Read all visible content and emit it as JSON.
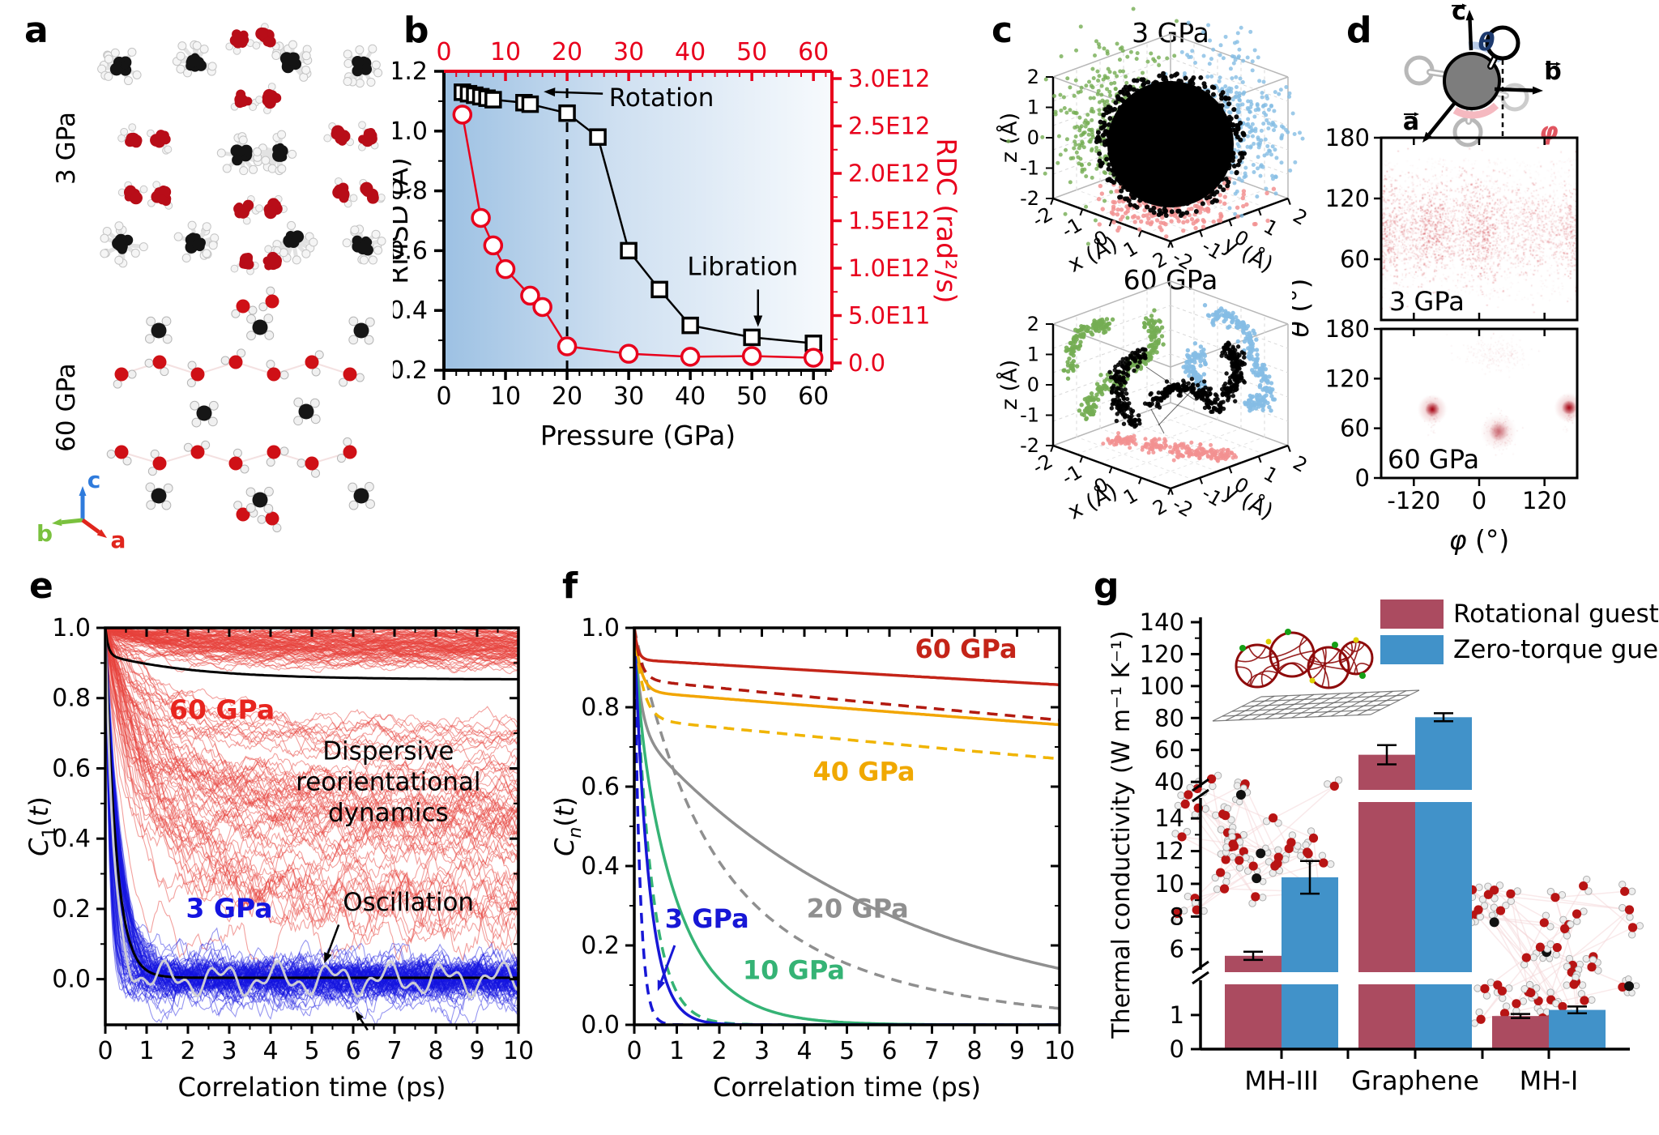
{
  "panels": {
    "a": {
      "label": "a",
      "row_labels": [
        "3 GPa",
        "60 GPa"
      ],
      "axis_triad": {
        "c": {
          "label": "c",
          "color": "#2f7bdc"
        },
        "b": {
          "label": "b",
          "color": "#7ac13e"
        },
        "a": {
          "label": "a",
          "color": "#e0251c"
        }
      },
      "illustrations": [
        "mh-iii-3gpa-structure",
        "mh-iii-60gpa-structure"
      ]
    },
    "b": {
      "label": "b"
    },
    "c": {
      "label": "c"
    },
    "d": {
      "label": "d",
      "schematic": {
        "vectors": [
          {
            "label": "a"
          },
          {
            "label": "b"
          },
          {
            "label": "c"
          }
        ],
        "theta": {
          "label": "θ",
          "color": "#1d3a6e"
        },
        "phi": {
          "label": "φ",
          "color": "#e05560"
        }
      }
    },
    "e": {
      "label": "e"
    },
    "f": {
      "label": "f"
    },
    "g": {
      "label": "g"
    }
  },
  "chart_data": [
    {
      "panel": "b",
      "type": "line",
      "xlabel": "Pressure (GPa)",
      "xlim": [
        0,
        63
      ],
      "xticks": [
        0,
        10,
        20,
        30,
        40,
        50,
        60
      ],
      "left_axis": {
        "label": "RMSD (Å)",
        "lim": [
          0.2,
          1.2
        ],
        "ticks": [
          0.2,
          0.4,
          0.6,
          0.8,
          1.0,
          1.2
        ]
      },
      "right_axis": {
        "label": "RDC (rad²/s)",
        "lim": [
          0,
          3000000000000.0
        ],
        "ticks": [
          0,
          500000000000.0,
          1000000000000.0,
          1500000000000.0,
          2000000000000.0,
          2500000000000.0,
          3000000000000.0
        ],
        "tick_labels": [
          "0.0",
          "5.0E11",
          "1.0E12",
          "1.5E12",
          "2.0E12",
          "2.5E12",
          "3.0E12"
        ],
        "color": "#e8001c"
      },
      "phase_line_x": 20,
      "background_gradient": [
        "#9dc1e3",
        "#f7fafd"
      ],
      "series": [
        {
          "name": "RMSD",
          "axis": "left",
          "marker": "square",
          "color": "#000000",
          "x": [
            3,
            4,
            5,
            6,
            7,
            8,
            13,
            14,
            20,
            25,
            30,
            35,
            40,
            50,
            60
          ],
          "y": [
            1.13,
            1.125,
            1.12,
            1.115,
            1.11,
            1.105,
            1.095,
            1.09,
            1.06,
            0.98,
            0.6,
            0.47,
            0.35,
            0.31,
            0.29
          ]
        },
        {
          "name": "RDC",
          "axis": "right",
          "marker": "circle",
          "color": "#e8001c",
          "x": [
            3,
            6,
            8,
            10,
            14,
            16,
            20,
            30,
            40,
            50,
            60
          ],
          "y": [
            2620000000000.0,
            1530000000000.0,
            1240000000000.0,
            990000000000.0,
            710000000000.0,
            590000000000.0,
            175000000000.0,
            97000000000.0,
            65000000000.0,
            73000000000.0,
            55000000000.0
          ]
        }
      ],
      "annotations": [
        {
          "text": "Rotation",
          "x": 26.8,
          "y": 1.11,
          "arrow_from": [
            25.8,
            1.125
          ],
          "arrow_to": [
            16.2,
            1.132
          ]
        },
        {
          "text": "Libration",
          "x": 48.5,
          "y": 0.545,
          "arrow_from": [
            51,
            0.47
          ],
          "arrow_to": [
            51,
            0.345
          ]
        }
      ]
    },
    {
      "panel": "c",
      "type": "scatter",
      "plots": [
        {
          "title": "3 GPa",
          "mode": "delocalized"
        },
        {
          "title": "60 GPa",
          "mode": "localized"
        }
      ],
      "axes": {
        "x": {
          "label": "x (Å)",
          "ticks": [
            -2,
            -1,
            0,
            1,
            2
          ]
        },
        "y": {
          "label": "y (Å)",
          "ticks": [
            -2,
            -1,
            0,
            1,
            2
          ]
        },
        "z": {
          "label": "z (Å)",
          "ticks": [
            2,
            1,
            0,
            -1,
            -2
          ]
        }
      },
      "colors": {
        "trajectory": "#000000",
        "xz_projection": "#74ad53",
        "yz_projection": "#85bde4",
        "xy_projection": "#f29191"
      }
    },
    {
      "panel": "d",
      "type": "heatmap",
      "xlabel": "φ (°)",
      "ylabel": "θ (°)",
      "xlim": [
        -180,
        180
      ],
      "ylim": [
        0,
        180
      ],
      "xticks": [
        -120,
        0,
        120
      ],
      "ytick_labels_top_map": [
        180,
        120,
        60
      ],
      "ytick_labels_bottom_map": [
        180,
        120,
        60,
        0
      ],
      "color": "#c02030",
      "maps": [
        {
          "label": "3 GPa",
          "pattern": "diffuse band near theta=90",
          "band_theta": [
            60,
            120
          ],
          "hotspot_phi": [
            -180,
            -90,
            0,
            90,
            180
          ]
        },
        {
          "label": "60 GPa",
          "pattern": "localized spots",
          "spots": [
            {
              "phi": -86,
              "theta": 83,
              "intensity": 1.0
            },
            {
              "phi": 36,
              "theta": 56,
              "intensity": 0.55
            },
            {
              "phi": 165,
              "theta": 85,
              "intensity": 1.0
            },
            {
              "phi": 21,
              "theta": 156,
              "intensity": 0.18
            }
          ]
        }
      ]
    },
    {
      "panel": "e",
      "type": "line-ensemble",
      "xlabel": "Correlation time (ps)",
      "ylabel_parts": [
        {
          "t": "C",
          "i": true
        },
        {
          "t": "1",
          "sub": true
        },
        {
          "t": "("
        },
        {
          "t": "t",
          "i": true
        },
        {
          "t": ")"
        }
      ],
      "xlim": [
        0,
        10
      ],
      "ylim": [
        -0.13,
        1.0
      ],
      "xticks": [
        0,
        1,
        2,
        3,
        4,
        5,
        6,
        7,
        8,
        9,
        10
      ],
      "yticks": [
        0.0,
        0.2,
        0.4,
        0.6,
        0.8,
        1.0
      ],
      "ensembles": [
        {
          "name": "60 GPa",
          "color": "#e8413c",
          "n": 170
        },
        {
          "name": "3 GPa",
          "color": "#1414e0",
          "n": 100
        }
      ],
      "mean_color": "#000000",
      "oscillation_color": "#d4d4d4",
      "annotations": [
        {
          "text": "60 GPa",
          "color": "#e8251f",
          "x": 1.55,
          "y": 0.74,
          "bold": true
        },
        {
          "lines": [
            "Dispersive",
            "reorientational",
            "dynamics"
          ],
          "color": "#000000",
          "x": 6.85,
          "y": 0.625
        },
        {
          "text": "3 GPa",
          "color": "#1414e0",
          "x": 1.95,
          "y": 0.175,
          "bold": true
        },
        {
          "text": "Oscillation",
          "color": "#000000",
          "x": 5.75,
          "y": 0.195,
          "arrow_from": [
            5.65,
            0.155
          ],
          "arrow_to": [
            5.3,
            0.045
          ]
        }
      ]
    },
    {
      "panel": "f",
      "type": "line",
      "xlabel": "Correlation time (ps)",
      "ylabel_parts": [
        {
          "t": "C",
          "i": true
        },
        {
          "t": "n",
          "sub": true,
          "i": true
        },
        {
          "t": "("
        },
        {
          "t": "t",
          "i": true
        },
        {
          "t": ")"
        }
      ],
      "xlim": [
        0,
        10
      ],
      "ylim": [
        0.0,
        1.0
      ],
      "xticks": [
        0,
        1,
        2,
        3,
        4,
        5,
        6,
        7,
        8,
        9,
        10
      ],
      "yticks": [
        0.0,
        0.2,
        0.4,
        0.6,
        0.8,
        1.0
      ],
      "series": [
        {
          "pressure": "20 GPa",
          "style": "dashed",
          "color": "#8f8f8f",
          "decay": {
            "a1": 0.5,
            "tau1": 1.3,
            "a2": 0.5,
            "tau2": 4.0
          }
        },
        {
          "pressure": "20 GPa",
          "style": "solid",
          "color": "#8f8f8f",
          "decay": {
            "a1": 0.25,
            "tau1": 0.15,
            "a2": 0.75,
            "tau2": 6.0
          }
        },
        {
          "pressure": "10 GPa",
          "style": "dashed",
          "color": "#35b375",
          "decay": {
            "a1": 1.0,
            "tau1": 0.4,
            "a2": 0.0,
            "tau2": 1
          }
        },
        {
          "pressure": "10 GPa",
          "style": "solid",
          "color": "#35b375",
          "decay": {
            "a1": 0.15,
            "tau1": 0.12,
            "a2": 0.85,
            "tau2": 1.0
          }
        },
        {
          "pressure": "3 GPa",
          "style": "dashed",
          "color": "#1717d6",
          "decay": {
            "a1": 1.0,
            "tau1": 0.13,
            "a2": 0.0,
            "tau2": 1
          }
        },
        {
          "pressure": "3 GPa",
          "style": "solid",
          "color": "#1717d6",
          "decay": {
            "a1": 1.0,
            "tau1": 0.34,
            "a2": 0.0,
            "tau2": 1
          }
        },
        {
          "pressure": "40 GPa",
          "style": "dashed",
          "color": "#f0b400",
          "decay": {
            "a1": 0.23,
            "tau1": 0.2,
            "a2": 0.77,
            "tau2": 72
          }
        },
        {
          "pressure": "40 GPa",
          "style": "solid",
          "color": "#f2a500",
          "decay": {
            "a1": 0.16,
            "tau1": 0.15,
            "a2": 0.84,
            "tau2": 95
          }
        },
        {
          "pressure": "60 GPa",
          "style": "dashed",
          "color": "#b21a10",
          "decay": {
            "a1": 0.13,
            "tau1": 0.15,
            "a2": 0.87,
            "tau2": 80
          }
        },
        {
          "pressure": "60 GPa",
          "style": "solid",
          "color": "#c42418",
          "decay": {
            "a1": 0.08,
            "tau1": 0.08,
            "a2": 0.92,
            "tau2": 140
          }
        }
      ],
      "labels": [
        {
          "text": "60 GPa",
          "color": "#c42418",
          "x": 6.6,
          "y": 0.925
        },
        {
          "text": "40 GPa",
          "color": "#f0a800",
          "x": 4.2,
          "y": 0.615
        },
        {
          "text": "20 GPa",
          "color": "#8f8f8f",
          "x": 4.05,
          "y": 0.27
        },
        {
          "text": "10 GPa",
          "color": "#35b375",
          "x": 2.55,
          "y": 0.115
        },
        {
          "text": "3 GPa",
          "color": "#1717d6",
          "x": 0.72,
          "y": 0.245,
          "arrow_from": [
            0.95,
            0.2
          ],
          "arrow_to": [
            0.55,
            0.085
          ]
        }
      ]
    },
    {
      "panel": "g",
      "type": "bar",
      "ylabel": "Thermal conductivity (W m⁻¹ K⁻¹)",
      "categories": [
        "MH-III",
        "Graphene",
        "MH-I"
      ],
      "series": [
        {
          "name": "Rotational guest",
          "color": "#ab4b60",
          "values": [
            5.6,
            57,
            0.97
          ],
          "errors": [
            0.25,
            6,
            0.06
          ]
        },
        {
          "name": "Zero-torque guest",
          "color": "#4192c9",
          "values": [
            10.4,
            80.5,
            1.15
          ],
          "errors": [
            1.0,
            2.5,
            0.1
          ]
        }
      ],
      "axis_segments": [
        {
          "range": [
            0,
            1.9
          ],
          "ticks": [
            0,
            1
          ]
        },
        {
          "range": [
            4.6,
            15
          ],
          "ticks": [
            6,
            8,
            10,
            12,
            14
          ]
        },
        {
          "range": [
            35,
            140
          ],
          "ticks": [
            40,
            60,
            80,
            100,
            120,
            140
          ]
        }
      ],
      "legend": {
        "entries": [
          {
            "label": "Rotational guest",
            "color": "#ab4b60"
          },
          {
            "label": "Zero-torque guest",
            "color": "#4192c9"
          }
        ]
      },
      "illustrations": [
        "mh-iii-structure",
        "fullerene-on-graphene",
        "mh-i-structure"
      ]
    }
  ]
}
